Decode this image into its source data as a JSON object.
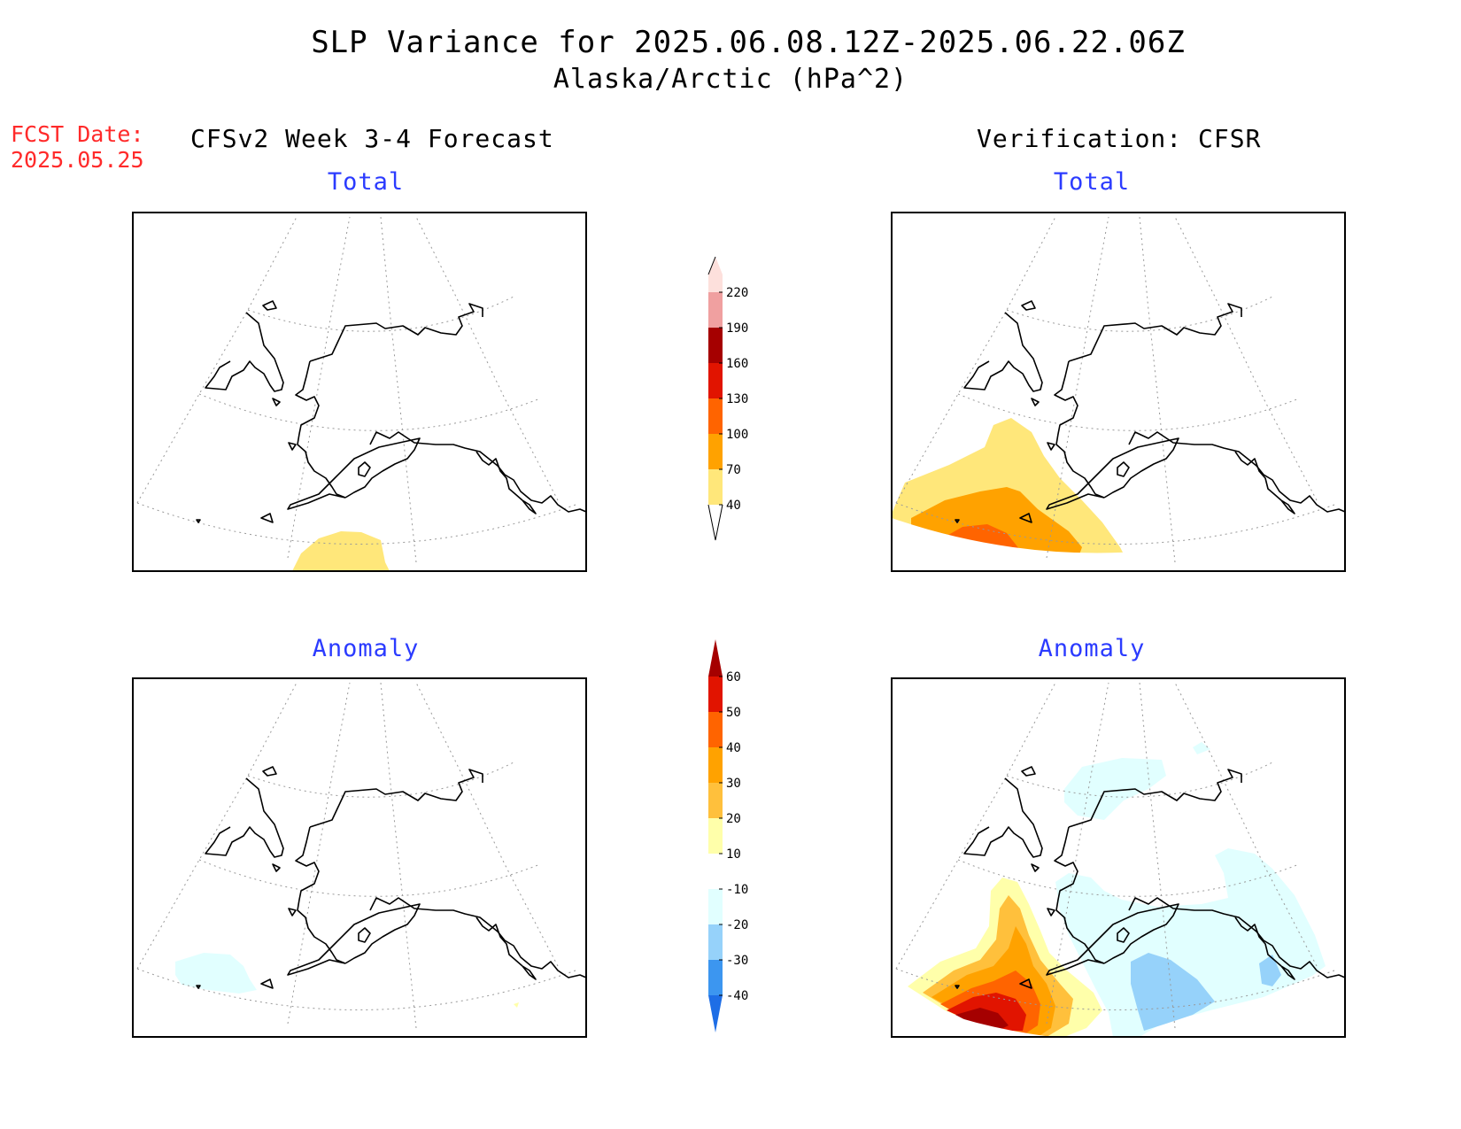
{
  "header": {
    "title": "SLP Variance for 2025.06.08.12Z-2025.06.22.06Z",
    "subtitle": "Alaska/Arctic (hPa^2)",
    "fcst_date_label": "FCST Date:",
    "fcst_date_value": "2025.05.25",
    "left_column_title": "CFSv2 Week 3-4 Forecast",
    "right_column_title": "Verification: CFSR"
  },
  "panels": {
    "forecast_total_title": "Total",
    "verification_total_title": "Total",
    "forecast_anomaly_title": "Anomaly",
    "verification_anomaly_title": "Anomaly"
  },
  "colorbars": {
    "total": {
      "labels": [
        "220",
        "190",
        "160",
        "130",
        "100",
        "70",
        "40"
      ],
      "levels": [
        40,
        70,
        100,
        130,
        160,
        190,
        220
      ],
      "colors": [
        "#ffe77a",
        "#ffa200",
        "#ff6400",
        "#e11400",
        "#a50000",
        "#f0a0a0",
        "#fde0dc"
      ]
    },
    "anomaly": {
      "labels": [
        "60",
        "50",
        "40",
        "30",
        "20",
        "10",
        "-10",
        "-20",
        "-30",
        "-40"
      ],
      "levels": [
        -40,
        -30,
        -20,
        -10,
        10,
        20,
        30,
        40,
        50,
        60
      ],
      "colors": [
        "#1e6ee6",
        "#3c96f0",
        "#96d2fa",
        "#e1ffff",
        "#ffffff",
        "#ffffaa",
        "#ffc03c",
        "#ffa200",
        "#ff6400",
        "#e11400",
        "#a50000"
      ]
    }
  }
}
